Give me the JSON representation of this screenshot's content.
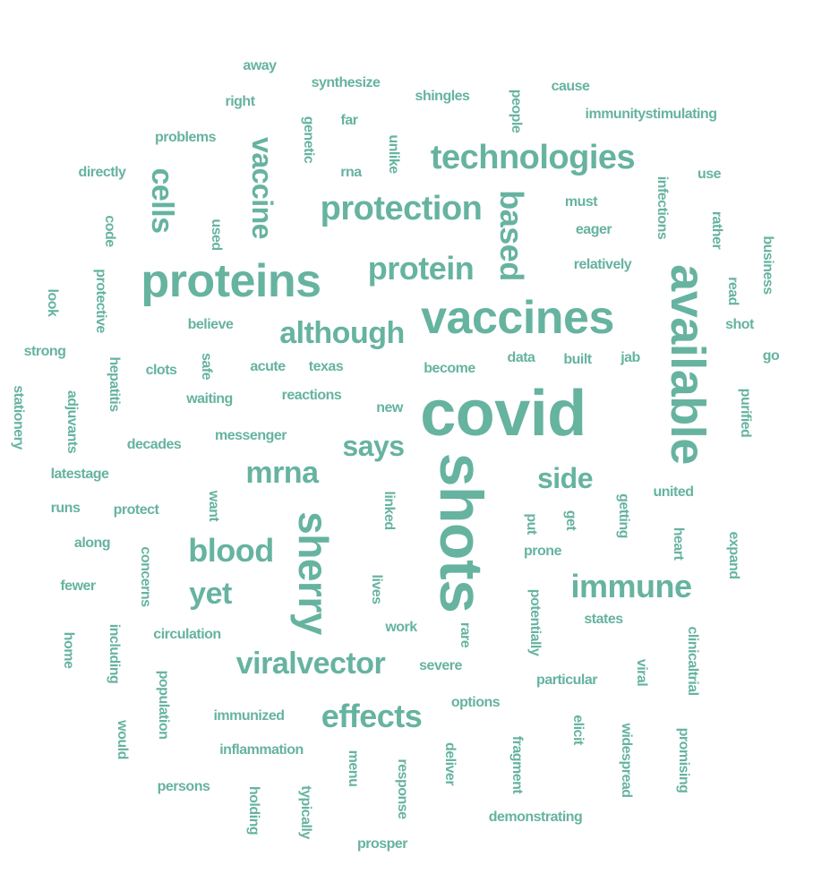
{
  "colors": {
    "word": "#66b3a0",
    "background": "#ffffff"
  },
  "words": [
    {
      "text": "covid",
      "rotated": false
    },
    {
      "text": "shots",
      "rotated": true
    },
    {
      "text": "vaccines",
      "rotated": false
    },
    {
      "text": "available",
      "rotated": true
    },
    {
      "text": "proteins",
      "rotated": false
    },
    {
      "text": "sherry",
      "rotated": true
    },
    {
      "text": "technologies",
      "rotated": false
    },
    {
      "text": "protection",
      "rotated": false
    },
    {
      "text": "vaccine",
      "rotated": true
    },
    {
      "text": "cells",
      "rotated": true
    },
    {
      "text": "protein",
      "rotated": false
    },
    {
      "text": "based",
      "rotated": true
    },
    {
      "text": "although",
      "rotated": false
    },
    {
      "text": "immune",
      "rotated": false
    },
    {
      "text": "blood",
      "rotated": false
    },
    {
      "text": "viralvector",
      "rotated": false
    },
    {
      "text": "effects",
      "rotated": false
    },
    {
      "text": "mrna",
      "rotated": false
    },
    {
      "text": "side",
      "rotated": false
    },
    {
      "text": "says",
      "rotated": false
    },
    {
      "text": "yet",
      "rotated": false
    },
    {
      "text": "away",
      "rotated": false
    },
    {
      "text": "synthesize",
      "rotated": false
    },
    {
      "text": "cause",
      "rotated": false
    },
    {
      "text": "right",
      "rotated": false
    },
    {
      "text": "shingles",
      "rotated": false
    },
    {
      "text": "people",
      "rotated": true
    },
    {
      "text": "immunitystimulating",
      "rotated": false
    },
    {
      "text": "genetic",
      "rotated": true
    },
    {
      "text": "far",
      "rotated": false
    },
    {
      "text": "problems",
      "rotated": false
    },
    {
      "text": "unlike",
      "rotated": true
    },
    {
      "text": "rna",
      "rotated": false
    },
    {
      "text": "directly",
      "rotated": false
    },
    {
      "text": "infections",
      "rotated": true
    },
    {
      "text": "use",
      "rotated": false
    },
    {
      "text": "must",
      "rotated": false
    },
    {
      "text": "code",
      "rotated": true
    },
    {
      "text": "used",
      "rotated": true
    },
    {
      "text": "eager",
      "rotated": false
    },
    {
      "text": "rather",
      "rotated": true
    },
    {
      "text": "business",
      "rotated": true
    },
    {
      "text": "relatively",
      "rotated": false
    },
    {
      "text": "protective",
      "rotated": true
    },
    {
      "text": "read",
      "rotated": true
    },
    {
      "text": "look",
      "rotated": true
    },
    {
      "text": "believe",
      "rotated": false
    },
    {
      "text": "shot",
      "rotated": false
    },
    {
      "text": "strong",
      "rotated": false
    },
    {
      "text": "safe",
      "rotated": true
    },
    {
      "text": "hepatitis",
      "rotated": true
    },
    {
      "text": "clots",
      "rotated": false
    },
    {
      "text": "acute",
      "rotated": false
    },
    {
      "text": "texas",
      "rotated": false
    },
    {
      "text": "become",
      "rotated": false
    },
    {
      "text": "data",
      "rotated": false
    },
    {
      "text": "built",
      "rotated": false
    },
    {
      "text": "jab",
      "rotated": false
    },
    {
      "text": "go",
      "rotated": false
    },
    {
      "text": "stationery",
      "rotated": true
    },
    {
      "text": "adjuvants",
      "rotated": true
    },
    {
      "text": "waiting",
      "rotated": false
    },
    {
      "text": "reactions",
      "rotated": false
    },
    {
      "text": "purified",
      "rotated": true
    },
    {
      "text": "new",
      "rotated": false
    },
    {
      "text": "decades",
      "rotated": false
    },
    {
      "text": "messenger",
      "rotated": false
    },
    {
      "text": "latestage",
      "rotated": false
    },
    {
      "text": "want",
      "rotated": true
    },
    {
      "text": "linked",
      "rotated": true
    },
    {
      "text": "united",
      "rotated": false
    },
    {
      "text": "getting",
      "rotated": true
    },
    {
      "text": "runs",
      "rotated": false
    },
    {
      "text": "protect",
      "rotated": false
    },
    {
      "text": "put",
      "rotated": true
    },
    {
      "text": "get",
      "rotated": true
    },
    {
      "text": "heart",
      "rotated": true
    },
    {
      "text": "along",
      "rotated": false
    },
    {
      "text": "prone",
      "rotated": false
    },
    {
      "text": "expand",
      "rotated": true
    },
    {
      "text": "concerns",
      "rotated": true
    },
    {
      "text": "fewer",
      "rotated": false
    },
    {
      "text": "lives",
      "rotated": true
    },
    {
      "text": "potentially",
      "rotated": true
    },
    {
      "text": "states",
      "rotated": false
    },
    {
      "text": "including",
      "rotated": true
    },
    {
      "text": "work",
      "rotated": false
    },
    {
      "text": "clinicaltrial",
      "rotated": true
    },
    {
      "text": "home",
      "rotated": true
    },
    {
      "text": "circulation",
      "rotated": false
    },
    {
      "text": "rare",
      "rotated": true
    },
    {
      "text": "severe",
      "rotated": false
    },
    {
      "text": "population",
      "rotated": true
    },
    {
      "text": "viral",
      "rotated": true
    },
    {
      "text": "particular",
      "rotated": false
    },
    {
      "text": "options",
      "rotated": false
    },
    {
      "text": "immunized",
      "rotated": false
    },
    {
      "text": "would",
      "rotated": true
    },
    {
      "text": "elicit",
      "rotated": true
    },
    {
      "text": "widespread",
      "rotated": true
    },
    {
      "text": "promising",
      "rotated": true
    },
    {
      "text": "inflammation",
      "rotated": false
    },
    {
      "text": "deliver",
      "rotated": true
    },
    {
      "text": "fragment",
      "rotated": true
    },
    {
      "text": "menu",
      "rotated": true
    },
    {
      "text": "response",
      "rotated": true
    },
    {
      "text": "persons",
      "rotated": false
    },
    {
      "text": "holding",
      "rotated": true
    },
    {
      "text": "typically",
      "rotated": true
    },
    {
      "text": "demonstrating",
      "rotated": false
    },
    {
      "text": "prosper",
      "rotated": false
    }
  ]
}
